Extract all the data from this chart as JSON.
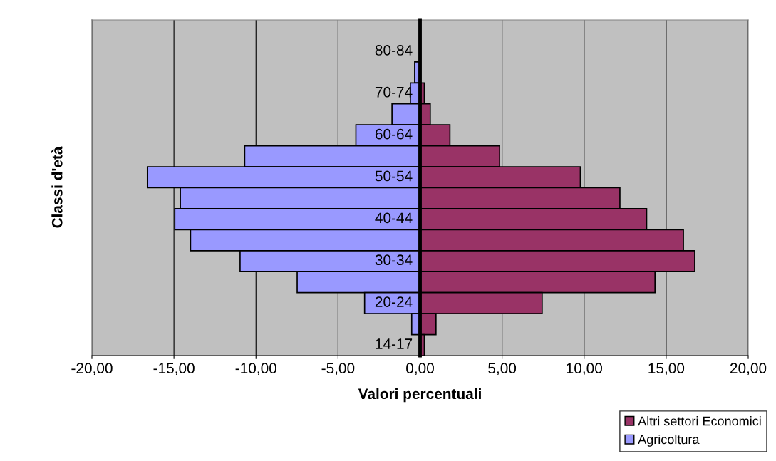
{
  "chart_data": {
    "type": "bar",
    "orientation": "horizontal",
    "stacked": true,
    "categories": [
      null,
      "80-84",
      null,
      "70-74",
      null,
      "60-64",
      null,
      "50-54",
      null,
      "40-44",
      null,
      "30-34",
      null,
      "20-24",
      null,
      "14-17"
    ],
    "series": [
      {
        "name": "Altri settori Economici",
        "color": "#993366",
        "values": [
          null,
          null,
          null,
          0.26,
          0.62,
          1.82,
          4.85,
          9.77,
          12.18,
          13.81,
          16.05,
          16.74,
          14.32,
          7.44,
          0.97,
          0.26
        ]
      },
      {
        "name": "Agricoltura",
        "color": "#9999ff",
        "values": [
          null,
          null,
          -0.33,
          -0.59,
          -1.71,
          -3.91,
          -10.69,
          -16.62,
          -14.61,
          -14.95,
          -13.99,
          -10.97,
          -7.49,
          -3.38,
          -0.51,
          null
        ]
      }
    ],
    "xlabel": "Valori percentuali",
    "ylabel": "Classi d'età",
    "xlim": [
      -20,
      20
    ],
    "xticks": [
      {
        "value": -20,
        "label": "-20,00"
      },
      {
        "value": -15,
        "label": "-15,00"
      },
      {
        "value": -10,
        "label": "-10,00"
      },
      {
        "value": -5,
        "label": "-5,00"
      },
      {
        "value": 0,
        "label": "0,00"
      },
      {
        "value": 5,
        "label": "5,00"
      },
      {
        "value": 10,
        "label": "10,00"
      },
      {
        "value": 15,
        "label": "15,00"
      },
      {
        "value": 20,
        "label": "20,00"
      }
    ],
    "grid": "x",
    "legend": "bottom right"
  }
}
